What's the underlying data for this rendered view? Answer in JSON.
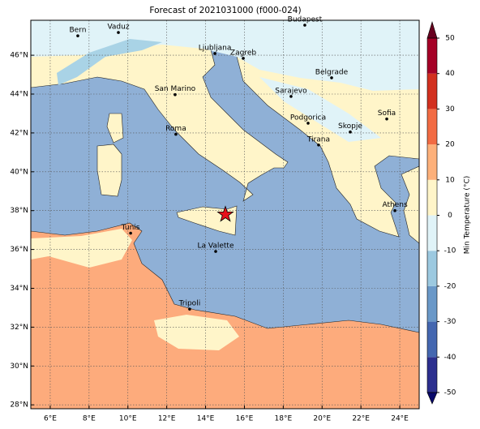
{
  "chart_data": {
    "type": "map",
    "title": "Forecast of 2021031000 (f000-024)",
    "xlim": [
      5,
      25
    ],
    "ylim": [
      27.8,
      47.8
    ],
    "grid": true,
    "xticks": [
      {
        "value": 6,
        "label": "6°E"
      },
      {
        "value": 8,
        "label": "8°E"
      },
      {
        "value": 10,
        "label": "10°E"
      },
      {
        "value": 12,
        "label": "12°E"
      },
      {
        "value": 14,
        "label": "14°E"
      },
      {
        "value": 16,
        "label": "16°E"
      },
      {
        "value": 18,
        "label": "18°E"
      },
      {
        "value": 20,
        "label": "20°E"
      },
      {
        "value": 22,
        "label": "22°E"
      },
      {
        "value": 24,
        "label": "24°E"
      }
    ],
    "yticks": [
      {
        "value": 28,
        "label": "28°N"
      },
      {
        "value": 30,
        "label": "30°N"
      },
      {
        "value": 32,
        "label": "32°N"
      },
      {
        "value": 34,
        "label": "34°N"
      },
      {
        "value": 36,
        "label": "36°N"
      },
      {
        "value": 38,
        "label": "38°N"
      },
      {
        "value": 40,
        "label": "40°N"
      },
      {
        "value": 42,
        "label": "42°N"
      },
      {
        "value": 44,
        "label": "44°N"
      },
      {
        "value": 46,
        "label": "46°N"
      }
    ],
    "cities": [
      {
        "name": "Bern",
        "lon": 7.42,
        "lat": 47.0
      },
      {
        "name": "Vaduz",
        "lon": 9.51,
        "lat": 47.17
      },
      {
        "name": "Budapest",
        "lon": 19.11,
        "lat": 47.55
      },
      {
        "name": "Ljubljana",
        "lon": 14.48,
        "lat": 46.09
      },
      {
        "name": "Zagreb",
        "lon": 15.94,
        "lat": 45.84
      },
      {
        "name": "Belgrade",
        "lon": 20.49,
        "lat": 44.84
      },
      {
        "name": "San Marino",
        "lon": 12.43,
        "lat": 43.97
      },
      {
        "name": "Sarajevo",
        "lon": 18.4,
        "lat": 43.88
      },
      {
        "name": "Sofia",
        "lon": 23.33,
        "lat": 42.72
      },
      {
        "name": "Roma",
        "lon": 12.47,
        "lat": 41.93
      },
      {
        "name": "Podgorica",
        "lon": 19.28,
        "lat": 42.5
      },
      {
        "name": "Skopje",
        "lon": 21.45,
        "lat": 42.05
      },
      {
        "name": "Tirana",
        "lon": 19.82,
        "lat": 41.38
      },
      {
        "name": "Athens",
        "lon": 23.75,
        "lat": 38.0
      },
      {
        "name": "Tunis",
        "lon": 10.14,
        "lat": 36.84
      },
      {
        "name": "La Valette",
        "lon": 14.52,
        "lat": 35.9
      },
      {
        "name": "Tripoli",
        "lon": 13.18,
        "lat": 32.93
      }
    ],
    "star": {
      "lon": 15.02,
      "lat": 37.8,
      "color": "#e8101a"
    },
    "colorbar": {
      "label": "Min Temperature (°C)",
      "ticks": [
        -50,
        -40,
        -30,
        -20,
        -10,
        0,
        10,
        20,
        30,
        40,
        50
      ],
      "colors": [
        "#08086a",
        "#2c2f8e",
        "#4467b0",
        "#6a98c8",
        "#9cc9e0",
        "#e0f3f8",
        "#fff5c9",
        "#fdb07a",
        "#f26b43",
        "#d2301f",
        "#a50026",
        "#67001f"
      ]
    }
  }
}
